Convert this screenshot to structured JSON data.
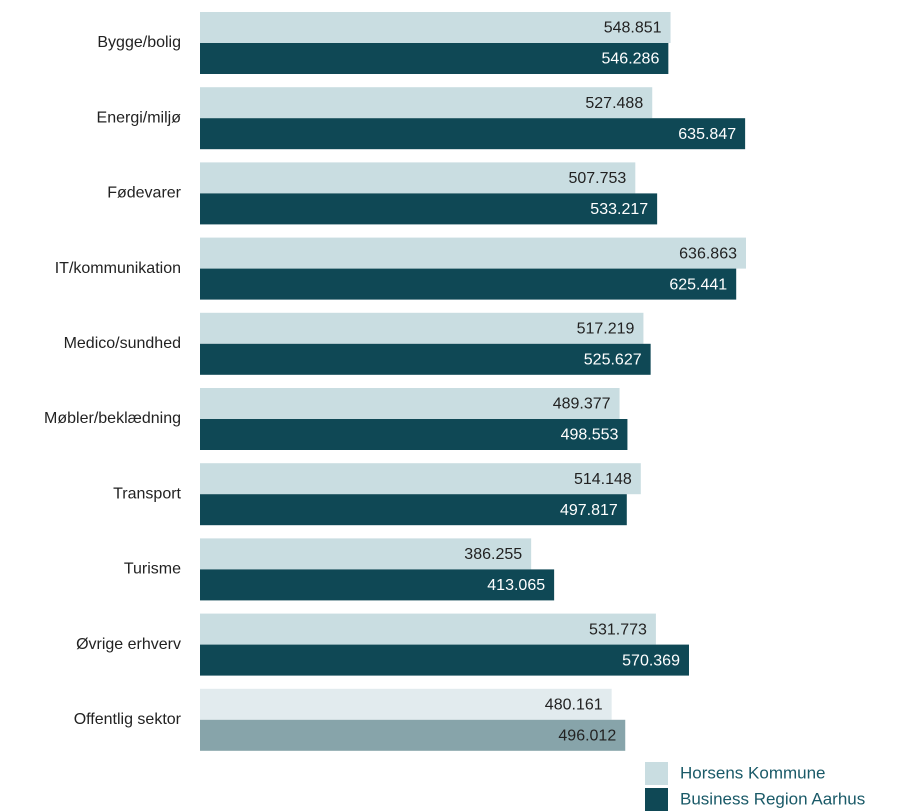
{
  "chart_data": {
    "type": "bar",
    "orientation": "horizontal",
    "categories": [
      "Bygge/bolig",
      "Energi/miljø",
      "Fødevarer",
      "IT/kommunikation",
      "Medico/sundhed",
      "Møbler/beklædning",
      "Transport",
      "Turisme",
      "Øvrige erhverv",
      "Offentlig sektor"
    ],
    "series": [
      {
        "name": "Horsens Kommune",
        "color": "#c9dde1",
        "colors": [
          "#c9dde1",
          "#c9dde1",
          "#c9dde1",
          "#c9dde1",
          "#c9dde1",
          "#c9dde1",
          "#c9dde1",
          "#c9dde1",
          "#c9dde1",
          "#e2ebee"
        ],
        "values": [
          548851,
          527488,
          507753,
          636863,
          517219,
          489377,
          514148,
          386255,
          531773,
          480161
        ],
        "value_labels": [
          "548.851",
          "527.488",
          "507.753",
          "636.863",
          "517.219",
          "489.377",
          "514.148",
          "386.255",
          "531.773",
          "480.161"
        ]
      },
      {
        "name": "Business Region Aarhus",
        "color": "#0f4855",
        "colors": [
          "#0f4855",
          "#0f4855",
          "#0f4855",
          "#0f4855",
          "#0f4855",
          "#0f4855",
          "#0f4855",
          "#0f4855",
          "#0f4855",
          "#87a4aa"
        ],
        "values": [
          546286,
          635847,
          533217,
          625441,
          525627,
          498553,
          497817,
          413065,
          570369,
          496012
        ],
        "value_labels": [
          "546.286",
          "635.847",
          "533.217",
          "625.441",
          "525.627",
          "498.553",
          "497.817",
          "413.065",
          "570.369",
          "496.012"
        ]
      }
    ]
  }
}
